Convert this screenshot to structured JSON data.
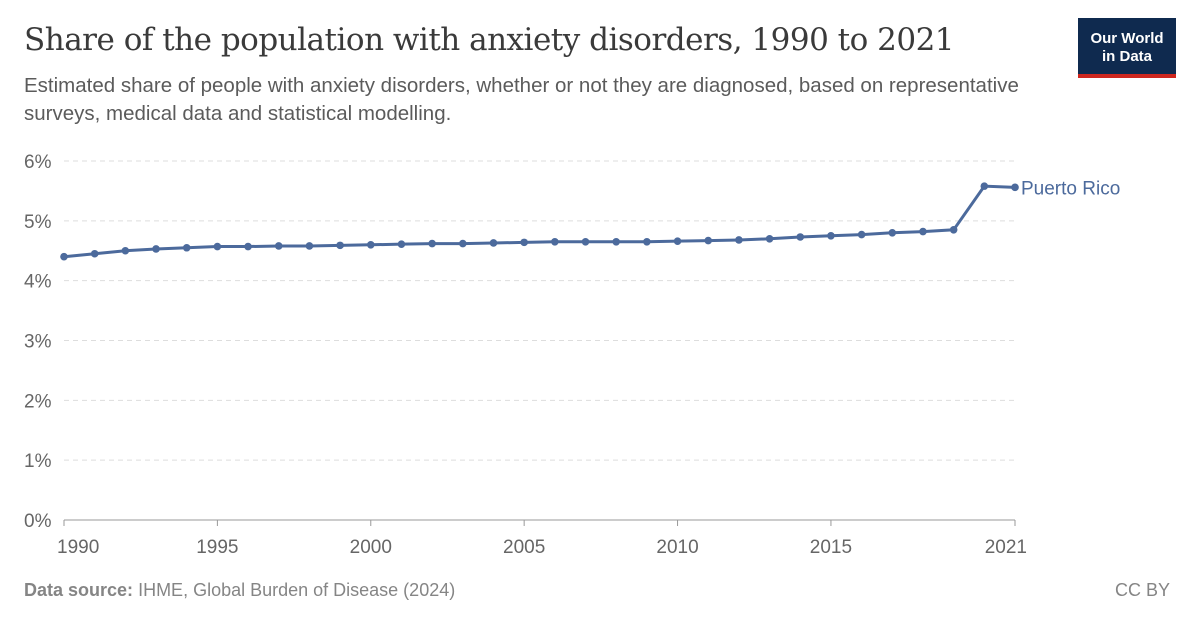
{
  "header": {
    "title": "Share of the population with anxiety disorders, 1990 to 2021",
    "subtitle": "Estimated share of people with anxiety disorders, whether or not they are diagnosed, based on representative surveys, medical data and statistical modelling.",
    "logo": "Our World in Data"
  },
  "footer": {
    "source_label": "Data source:",
    "source": "IHME, Global Burden of Disease (2024)",
    "license": "CC BY"
  },
  "chart_data": {
    "type": "line",
    "title": "Share of the population with anxiety disorders, 1990 to 2021",
    "xlim": [
      1990,
      2021
    ],
    "ylim": [
      0,
      6
    ],
    "grid": true,
    "x_ticks": [
      "1990",
      "1995",
      "2000",
      "2005",
      "2010",
      "2015",
      "2021"
    ],
    "y_ticks": [
      "0%",
      "1%",
      "2%",
      "3%",
      "4%",
      "5%",
      "6%"
    ],
    "x": [
      1990,
      1991,
      1992,
      1993,
      1994,
      1995,
      1996,
      1997,
      1998,
      1999,
      2000,
      2001,
      2002,
      2003,
      2004,
      2005,
      2006,
      2007,
      2008,
      2009,
      2010,
      2011,
      2012,
      2013,
      2014,
      2015,
      2016,
      2017,
      2018,
      2019,
      2020,
      2021
    ],
    "series": [
      {
        "name": "Puerto Rico",
        "color": "#4c6a9c",
        "values": [
          4.4,
          4.45,
          4.5,
          4.53,
          4.55,
          4.57,
          4.57,
          4.58,
          4.58,
          4.59,
          4.6,
          4.61,
          4.62,
          4.62,
          4.63,
          4.64,
          4.65,
          4.65,
          4.65,
          4.65,
          4.66,
          4.67,
          4.68,
          4.7,
          4.73,
          4.75,
          4.77,
          4.8,
          4.82,
          4.85,
          5.58,
          5.56
        ]
      }
    ]
  }
}
